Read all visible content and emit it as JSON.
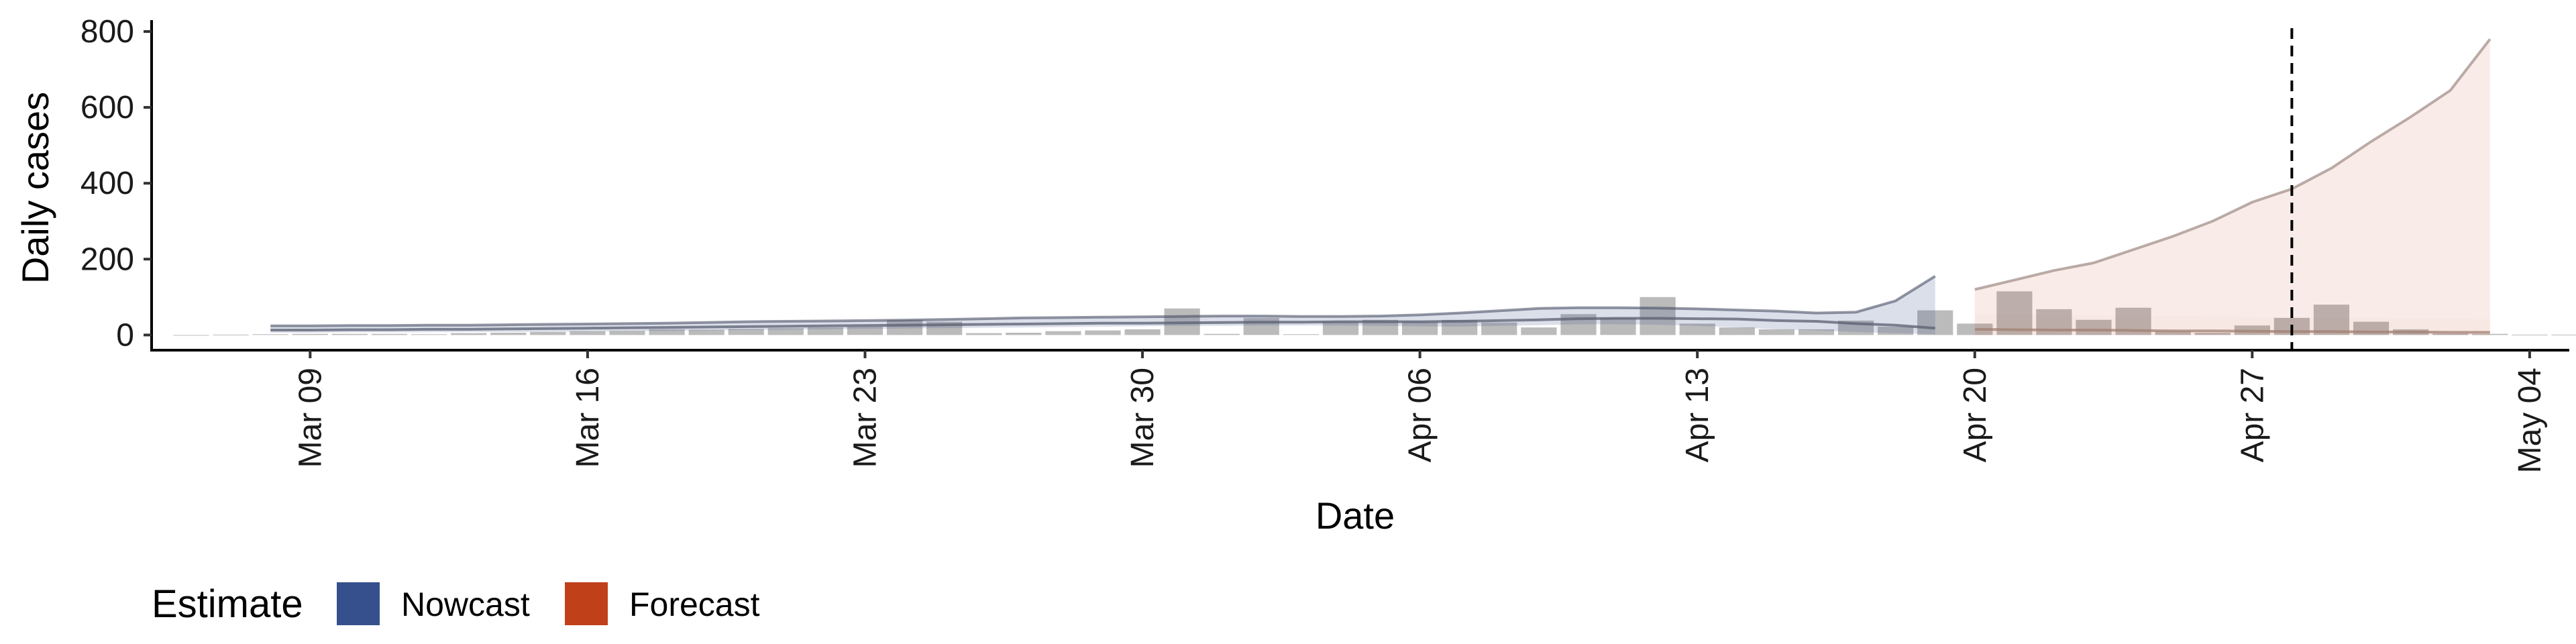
{
  "chart_data": {
    "type": "bar",
    "xlabel": "Date",
    "ylabel": "Daily cases",
    "xlim": [
      "2020-03-05",
      "2020-05-05"
    ],
    "ylim": [
      -40,
      830
    ],
    "y_ticks": [
      0,
      200,
      400,
      600,
      800
    ],
    "x_ticks": [
      {
        "date": "2020-03-09",
        "label": "Mar 09"
      },
      {
        "date": "2020-03-16",
        "label": "Mar 16"
      },
      {
        "date": "2020-03-23",
        "label": "Mar 23"
      },
      {
        "date": "2020-03-30",
        "label": "Mar 30"
      },
      {
        "date": "2020-04-06",
        "label": "Apr 06"
      },
      {
        "date": "2020-04-13",
        "label": "Apr 13"
      },
      {
        "date": "2020-04-20",
        "label": "Apr 20"
      },
      {
        "date": "2020-04-27",
        "label": "Apr 27"
      },
      {
        "date": "2020-05-04",
        "label": "May 04"
      }
    ],
    "reference_line": {
      "date": "2020-04-28",
      "style": "dashed"
    },
    "observed_cases": {
      "start_date": "2020-03-06",
      "values": [
        0,
        1,
        2,
        3,
        3,
        3,
        2,
        5,
        6,
        8,
        10,
        11,
        15,
        14,
        16,
        18,
        20,
        22,
        40,
        35,
        5,
        6,
        10,
        12,
        15,
        70,
        3,
        45,
        2,
        35,
        40,
        35,
        40,
        33,
        20,
        55,
        45,
        100,
        30,
        20,
        15,
        15,
        38,
        22,
        65,
        30,
        115,
        68,
        40,
        72,
        10,
        6,
        25,
        45,
        80,
        35,
        15,
        4,
        3,
        1,
        1,
        1,
        1
      ]
    },
    "series": [
      {
        "name": "Nowcast",
        "color": "#35508c",
        "start_date": "2020-03-08",
        "end_date": "2020-04-19",
        "median": [
          13,
          13,
          14,
          14,
          15,
          15,
          16,
          17,
          18,
          19,
          20,
          21,
          22,
          23,
          24,
          25,
          26,
          27,
          28,
          29,
          30,
          31,
          31,
          32,
          33,
          34,
          34,
          35,
          35,
          35,
          36,
          38,
          40,
          43,
          44,
          44,
          43,
          42,
          38,
          36,
          30,
          26,
          18
        ],
        "upper": [
          24,
          24,
          25,
          25,
          26,
          26,
          27,
          28,
          29,
          30,
          31,
          33,
          35,
          36,
          37,
          38,
          39,
          41,
          43,
          45,
          46,
          47,
          48,
          49,
          50,
          50,
          49,
          49,
          50,
          53,
          58,
          64,
          70,
          72,
          72,
          71,
          69,
          66,
          63,
          58,
          60,
          90,
          155
        ],
        "lower": [
          6,
          6,
          7,
          7,
          7,
          8,
          8,
          8,
          9,
          10,
          11,
          12,
          13,
          14,
          15,
          16,
          17,
          18,
          19,
          20,
          21,
          22,
          23,
          24,
          24,
          25,
          25,
          25,
          24,
          23,
          22,
          24,
          26,
          28,
          28,
          27,
          24,
          20,
          15,
          12,
          8,
          5,
          2
        ]
      },
      {
        "name": "Forecast",
        "color": "#c0401a",
        "start_date": "2020-04-20",
        "end_date": "2020-05-03",
        "median": [
          15,
          14,
          13,
          13,
          12,
          11,
          11,
          10,
          9,
          9,
          8,
          8,
          7,
          7
        ],
        "upper": [
          120,
          145,
          170,
          190,
          225,
          260,
          300,
          350,
          385,
          440,
          510,
          575,
          645,
          780
        ],
        "lower": [
          55,
          54,
          53,
          52,
          51,
          50,
          49,
          48,
          47,
          46,
          45,
          44,
          43,
          42
        ]
      }
    ],
    "legend": {
      "title": "Estimate",
      "position": "bottom-left",
      "items": [
        {
          "label": "Nowcast",
          "color": "#35508c"
        },
        {
          "label": "Forecast",
          "color": "#c0401a"
        }
      ]
    },
    "grid": false
  }
}
